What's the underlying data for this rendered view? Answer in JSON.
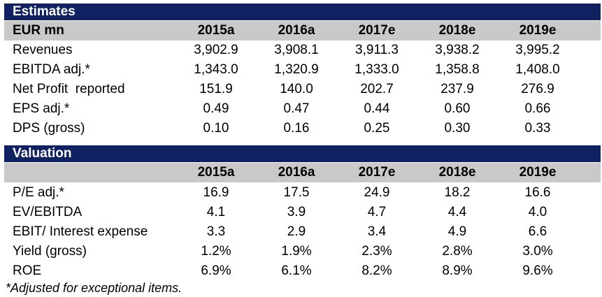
{
  "estimates": {
    "title": "Estimates",
    "unit_label": "EUR mn",
    "years": [
      "2015a",
      "2016a",
      "2017e",
      "2018e",
      "2019e"
    ],
    "rows": [
      {
        "label": "Revenues",
        "values": [
          "3,902.9",
          "3,908.1",
          "3,911.3",
          "3,938.2",
          "3,995.2"
        ]
      },
      {
        "label": "EBITDA adj.*",
        "values": [
          "1,343.0",
          "1,320.9",
          "1,333.0",
          "1,358.8",
          "1,408.0"
        ]
      },
      {
        "label": "Net Profit  reported",
        "values": [
          "151.9",
          "140.0",
          "202.7",
          "237.9",
          "276.9"
        ]
      },
      {
        "label": "EPS adj.*",
        "values": [
          "0.49",
          "0.47",
          "0.44",
          "0.60",
          "0.66"
        ]
      },
      {
        "label": "DPS (gross)",
        "values": [
          "0.10",
          "0.16",
          "0.25",
          "0.30",
          "0.33"
        ]
      }
    ]
  },
  "valuation": {
    "title": "Valuation",
    "unit_label": "",
    "years": [
      "2015a",
      "2016a",
      "2017e",
      "2018e",
      "2019e"
    ],
    "rows": [
      {
        "label": "P/E adj.*",
        "values": [
          "16.9",
          "17.5",
          "24.9",
          "18.2",
          "16.6"
        ]
      },
      {
        "label": "EV/EBITDA",
        "values": [
          "4.1",
          "3.9",
          "4.7",
          "4.4",
          "4.0"
        ]
      },
      {
        "label": "EBIT/ Interest expense",
        "values": [
          "3.3",
          "2.9",
          "3.4",
          "4.9",
          "6.6"
        ]
      },
      {
        "label": "Yield (gross)",
        "values": [
          "1.2%",
          "1.9%",
          "2.3%",
          "2.8%",
          "3.0%"
        ]
      },
      {
        "label": "ROE",
        "values": [
          "6.9%",
          "6.1%",
          "8.2%",
          "8.9%",
          "9.6%"
        ]
      }
    ]
  },
  "footnote": "*Adjusted for exceptional items.",
  "colors": {
    "section_bar": "#0f2160",
    "header_row": "#c9c9c9"
  }
}
